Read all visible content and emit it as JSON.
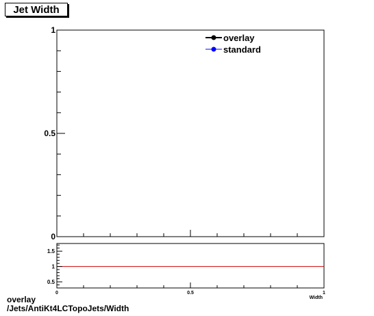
{
  "title": "Jet Width",
  "footer": {
    "line1": "overlay",
    "line2": "/Jets/AntiKt4LCTopoJets/Width"
  },
  "chart_data": [
    {
      "type": "line",
      "title": "Jet Width",
      "xlabel": "",
      "ylabel": "",
      "xlim": [
        0,
        1
      ],
      "ylim": [
        0,
        1
      ],
      "y_ticks": [
        "0",
        "0.5",
        "1"
      ],
      "legend": {
        "placement": "top-right",
        "entries": [
          "overlay",
          "standard"
        ]
      },
      "series": [
        {
          "name": "overlay",
          "color": "#000000",
          "marker": "circle",
          "x": [],
          "y": []
        },
        {
          "name": "standard",
          "color": "#0000ff",
          "marker": "circle",
          "x": [],
          "y": []
        }
      ],
      "grid": false
    },
    {
      "type": "line",
      "xlabel": "Width",
      "ylabel": "",
      "xlim": [
        0,
        1
      ],
      "ylim": [
        0.3,
        1.75
      ],
      "x_ticks": [
        "0",
        "0.5",
        "1"
      ],
      "y_ticks": [
        "0.5",
        "1",
        "1.5"
      ],
      "reference_line": {
        "y": 1,
        "color": "#cc0000"
      },
      "grid": false
    }
  ]
}
